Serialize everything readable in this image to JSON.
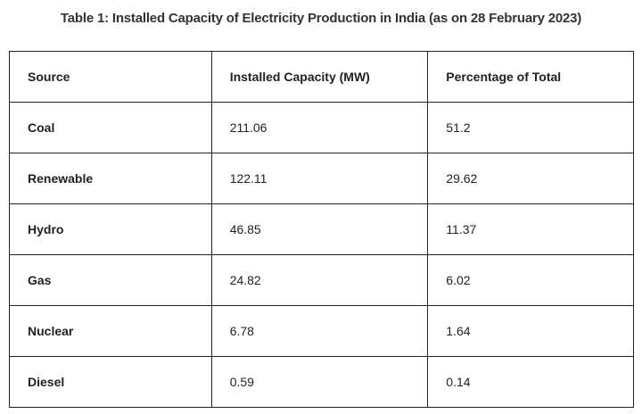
{
  "title": "Table 1: Installed Capacity of Electricity Production in India (as on 28 February 2023)",
  "headers": [
    "Source",
    "Installed Capacity (MW)",
    "Percentage of Total"
  ],
  "rows": [
    {
      "source": "Coal",
      "capacity": "211.06",
      "percent": "51.2"
    },
    {
      "source": "Renewable",
      "capacity": "122.11",
      "percent": "29.62"
    },
    {
      "source": "Hydro",
      "capacity": "46.85",
      "percent": "11.37"
    },
    {
      "source": "Gas",
      "capacity": "24.82",
      "percent": "6.02"
    },
    {
      "source": "Nuclear",
      "capacity": "6.78",
      "percent": "1.64"
    },
    {
      "source": "Diesel",
      "capacity": "0.59",
      "percent": "0.14"
    }
  ]
}
